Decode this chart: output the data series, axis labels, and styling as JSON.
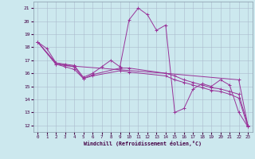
{
  "bg_color": "#cce8ee",
  "grid_color": "#aabbcc",
  "line_color": "#993399",
  "xlim": [
    -0.5,
    23.5
  ],
  "ylim": [
    11.5,
    21.5
  ],
  "xticks": [
    0,
    1,
    2,
    3,
    4,
    5,
    6,
    7,
    8,
    9,
    10,
    11,
    12,
    13,
    14,
    15,
    16,
    17,
    18,
    19,
    20,
    21,
    22,
    23
  ],
  "yticks": [
    12,
    13,
    14,
    15,
    16,
    17,
    18,
    19,
    20,
    21
  ],
  "xlabel": "Windchill (Refroidissement éolien,°C)",
  "series1": [
    [
      0,
      18.4
    ],
    [
      1,
      17.9
    ],
    [
      2,
      16.8
    ],
    [
      3,
      16.7
    ],
    [
      4,
      16.6
    ],
    [
      5,
      15.7
    ],
    [
      6,
      16.0
    ],
    [
      7,
      16.5
    ],
    [
      8,
      17.0
    ],
    [
      9,
      16.5
    ],
    [
      10,
      20.1
    ],
    [
      11,
      21.0
    ],
    [
      12,
      20.5
    ],
    [
      13,
      19.3
    ],
    [
      14,
      19.7
    ],
    [
      15,
      13.0
    ],
    [
      16,
      13.3
    ],
    [
      17,
      14.8
    ],
    [
      18,
      15.2
    ],
    [
      19,
      15.0
    ],
    [
      20,
      15.5
    ],
    [
      21,
      15.1
    ],
    [
      22,
      13.0
    ],
    [
      23,
      11.9
    ]
  ],
  "series2": [
    [
      0,
      18.4
    ],
    [
      2,
      16.8
    ],
    [
      3,
      16.6
    ],
    [
      4,
      16.5
    ],
    [
      5,
      15.6
    ],
    [
      6,
      15.9
    ],
    [
      9,
      16.4
    ],
    [
      10,
      16.4
    ],
    [
      14,
      16.0
    ],
    [
      15,
      15.8
    ],
    [
      16,
      15.5
    ],
    [
      17,
      15.3
    ],
    [
      18,
      15.1
    ],
    [
      19,
      14.9
    ],
    [
      20,
      14.8
    ],
    [
      21,
      14.6
    ],
    [
      22,
      14.4
    ],
    [
      23,
      12.0
    ]
  ],
  "series3": [
    [
      0,
      18.4
    ],
    [
      2,
      16.7
    ],
    [
      3,
      16.5
    ],
    [
      4,
      16.3
    ],
    [
      5,
      15.6
    ],
    [
      6,
      15.8
    ],
    [
      9,
      16.2
    ],
    [
      10,
      16.1
    ],
    [
      14,
      15.8
    ],
    [
      15,
      15.5
    ],
    [
      16,
      15.3
    ],
    [
      17,
      15.1
    ],
    [
      18,
      14.9
    ],
    [
      19,
      14.7
    ],
    [
      20,
      14.6
    ],
    [
      21,
      14.4
    ],
    [
      22,
      14.1
    ],
    [
      23,
      11.9
    ]
  ],
  "series4": [
    [
      0,
      18.4
    ],
    [
      2,
      16.7
    ],
    [
      3,
      16.6
    ],
    [
      14,
      16.0
    ],
    [
      22,
      15.5
    ],
    [
      23,
      12.0
    ]
  ]
}
